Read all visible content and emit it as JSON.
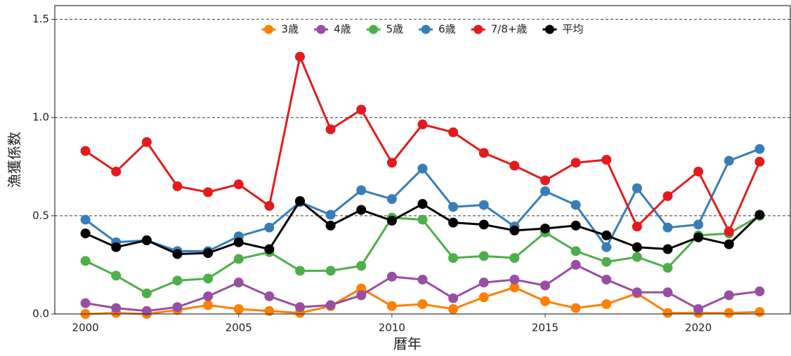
{
  "chart_data": {
    "type": "line",
    "x_label": "暦年",
    "y_label": "漁獲係数",
    "x": [
      2000,
      2001,
      2002,
      2003,
      2004,
      2005,
      2006,
      2007,
      2008,
      2009,
      2010,
      2011,
      2012,
      2013,
      2014,
      2015,
      2016,
      2017,
      2018,
      2019,
      2020,
      2021,
      2022
    ],
    "xlim": [
      1999,
      2023
    ],
    "xticks": [
      2000,
      2005,
      2010,
      2015,
      2020
    ],
    "ylim": [
      0,
      1.57
    ],
    "yticks": [
      {
        "value": 0,
        "label": "0.0"
      },
      {
        "value": 0.5,
        "label": "0.5"
      },
      {
        "value": 1,
        "label": "1.0"
      },
      {
        "value": 1.5,
        "label": "1.5"
      }
    ],
    "grid": true,
    "legend": "top",
    "series": [
      {
        "name": "3歳",
        "color": "#ff7f00",
        "values": [
          0.0,
          0.005,
          0.0,
          0.02,
          0.045,
          0.025,
          0.015,
          0.005,
          0.04,
          0.13,
          0.04,
          0.05,
          0.025,
          0.085,
          0.135,
          0.065,
          0.03,
          0.05,
          0.105,
          0.005,
          0.005,
          0.005,
          0.01
        ]
      },
      {
        "name": "4歳",
        "color": "#984ea3",
        "values": [
          0.055,
          0.03,
          0.015,
          0.035,
          0.09,
          0.16,
          0.09,
          0.035,
          0.045,
          0.095,
          0.19,
          0.175,
          0.08,
          0.16,
          0.175,
          0.145,
          0.25,
          0.175,
          0.11,
          0.11,
          0.025,
          0.095,
          0.115
        ]
      },
      {
        "name": "5歳",
        "color": "#4daf4a",
        "values": [
          0.27,
          0.195,
          0.105,
          0.17,
          0.18,
          0.28,
          0.315,
          0.22,
          0.22,
          0.245,
          0.49,
          0.48,
          0.285,
          0.295,
          0.285,
          0.415,
          0.32,
          0.265,
          0.29,
          0.235,
          0.4,
          0.41,
          0.5
        ]
      },
      {
        "name": "6歳",
        "color": "#377eb8",
        "values": [
          0.48,
          0.365,
          0.375,
          0.32,
          0.32,
          0.395,
          0.44,
          0.57,
          0.505,
          0.63,
          0.585,
          0.74,
          0.545,
          0.555,
          0.445,
          0.625,
          0.555,
          0.34,
          0.64,
          0.44,
          0.455,
          0.78,
          0.84
        ]
      },
      {
        "name": "7/8+歳",
        "color": "#e41a1c",
        "values": [
          0.83,
          0.725,
          0.875,
          0.65,
          0.62,
          0.66,
          0.55,
          1.31,
          0.94,
          1.04,
          0.77,
          0.965,
          0.925,
          0.82,
          0.755,
          0.68,
          0.77,
          0.785,
          0.445,
          0.6,
          0.725,
          0.42,
          0.775
        ]
      },
      {
        "name": "平均",
        "color": "#000000",
        "values": [
          0.41,
          0.34,
          0.375,
          0.305,
          0.31,
          0.365,
          0.33,
          0.575,
          0.45,
          0.53,
          0.475,
          0.56,
          0.465,
          0.455,
          0.425,
          0.435,
          0.45,
          0.4,
          0.34,
          0.33,
          0.39,
          0.355,
          0.505
        ]
      }
    ]
  }
}
